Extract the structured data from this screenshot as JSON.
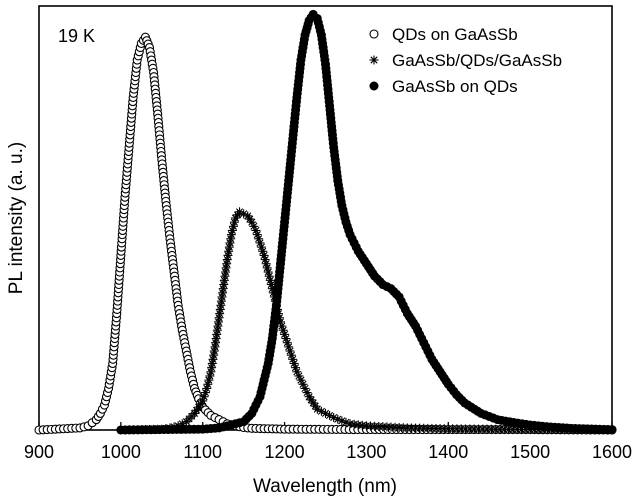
{
  "chart_data": {
    "type": "scatter",
    "xlabel": "Wavelength (nm)",
    "ylabel": "PL intensity (a. u.)",
    "xlim": [
      900,
      1600
    ],
    "ylim": [
      0,
      1.02
    ],
    "x_ticks": [
      "900",
      "1000",
      "1100",
      "1200",
      "1300",
      "1400",
      "1500",
      "1600"
    ],
    "y_ticks_shown": false,
    "annotation": "19 K",
    "legend_position": "top-right",
    "series": [
      {
        "name": "QDs on GaAsSb",
        "marker": "open-circle",
        "x": [
          900,
          950,
          960,
          970,
          975,
          980,
          985,
          990,
          995,
          1000,
          1005,
          1010,
          1015,
          1020,
          1025,
          1030,
          1035,
          1040,
          1045,
          1050,
          1055,
          1060,
          1065,
          1070,
          1075,
          1080,
          1085,
          1090,
          1095,
          1100,
          1110,
          1120,
          1130,
          1140,
          1150,
          1160,
          1200,
          1300,
          1400,
          1500,
          1600
        ],
        "y": [
          0.0,
          0.005,
          0.01,
          0.025,
          0.04,
          0.06,
          0.1,
          0.16,
          0.28,
          0.42,
          0.56,
          0.68,
          0.8,
          0.89,
          0.93,
          0.945,
          0.92,
          0.86,
          0.76,
          0.65,
          0.55,
          0.46,
          0.38,
          0.3,
          0.24,
          0.19,
          0.14,
          0.1,
          0.075,
          0.055,
          0.035,
          0.025,
          0.015,
          0.01,
          0.006,
          0.004,
          0.002,
          0.001,
          0.001,
          0.001,
          0.0
        ]
      },
      {
        "name": "GaAsSb/QDs/GaAsSb",
        "marker": "asterisk",
        "x": [
          1000,
          1050,
          1060,
          1070,
          1080,
          1090,
          1100,
          1105,
          1110,
          1115,
          1120,
          1125,
          1130,
          1135,
          1140,
          1145,
          1150,
          1155,
          1160,
          1165,
          1170,
          1175,
          1180,
          1185,
          1190,
          1195,
          1200,
          1205,
          1210,
          1215,
          1220,
          1225,
          1230,
          1235,
          1240,
          1250,
          1260,
          1270,
          1280,
          1300,
          1350,
          1400,
          1500,
          1600
        ],
        "y": [
          0.0,
          0.002,
          0.005,
          0.01,
          0.02,
          0.04,
          0.07,
          0.1,
          0.14,
          0.2,
          0.27,
          0.34,
          0.41,
          0.47,
          0.51,
          0.525,
          0.52,
          0.515,
          0.5,
          0.48,
          0.45,
          0.42,
          0.38,
          0.34,
          0.3,
          0.26,
          0.23,
          0.2,
          0.17,
          0.14,
          0.12,
          0.1,
          0.08,
          0.065,
          0.05,
          0.04,
          0.03,
          0.022,
          0.015,
          0.01,
          0.005,
          0.003,
          0.001,
          0.0
        ]
      },
      {
        "name": "GaAsSb on QDs",
        "marker": "filled-circle",
        "x": [
          1000,
          1100,
          1120,
          1130,
          1140,
          1150,
          1160,
          1170,
          1180,
          1185,
          1190,
          1195,
          1200,
          1205,
          1210,
          1215,
          1220,
          1225,
          1230,
          1235,
          1240,
          1245,
          1250,
          1255,
          1260,
          1265,
          1270,
          1275,
          1280,
          1290,
          1300,
          1310,
          1320,
          1330,
          1340,
          1350,
          1360,
          1370,
          1380,
          1390,
          1400,
          1410,
          1420,
          1440,
          1460,
          1480,
          1500,
          1520,
          1550,
          1600
        ],
        "y": [
          0.0,
          0.002,
          0.005,
          0.01,
          0.015,
          0.02,
          0.04,
          0.08,
          0.16,
          0.22,
          0.3,
          0.4,
          0.5,
          0.6,
          0.7,
          0.8,
          0.89,
          0.95,
          0.985,
          1.0,
          0.99,
          0.95,
          0.88,
          0.78,
          0.68,
          0.6,
          0.54,
          0.5,
          0.47,
          0.43,
          0.4,
          0.37,
          0.35,
          0.34,
          0.32,
          0.28,
          0.25,
          0.21,
          0.17,
          0.14,
          0.11,
          0.085,
          0.065,
          0.04,
          0.025,
          0.018,
          0.012,
          0.008,
          0.004,
          0.001
        ]
      }
    ]
  }
}
